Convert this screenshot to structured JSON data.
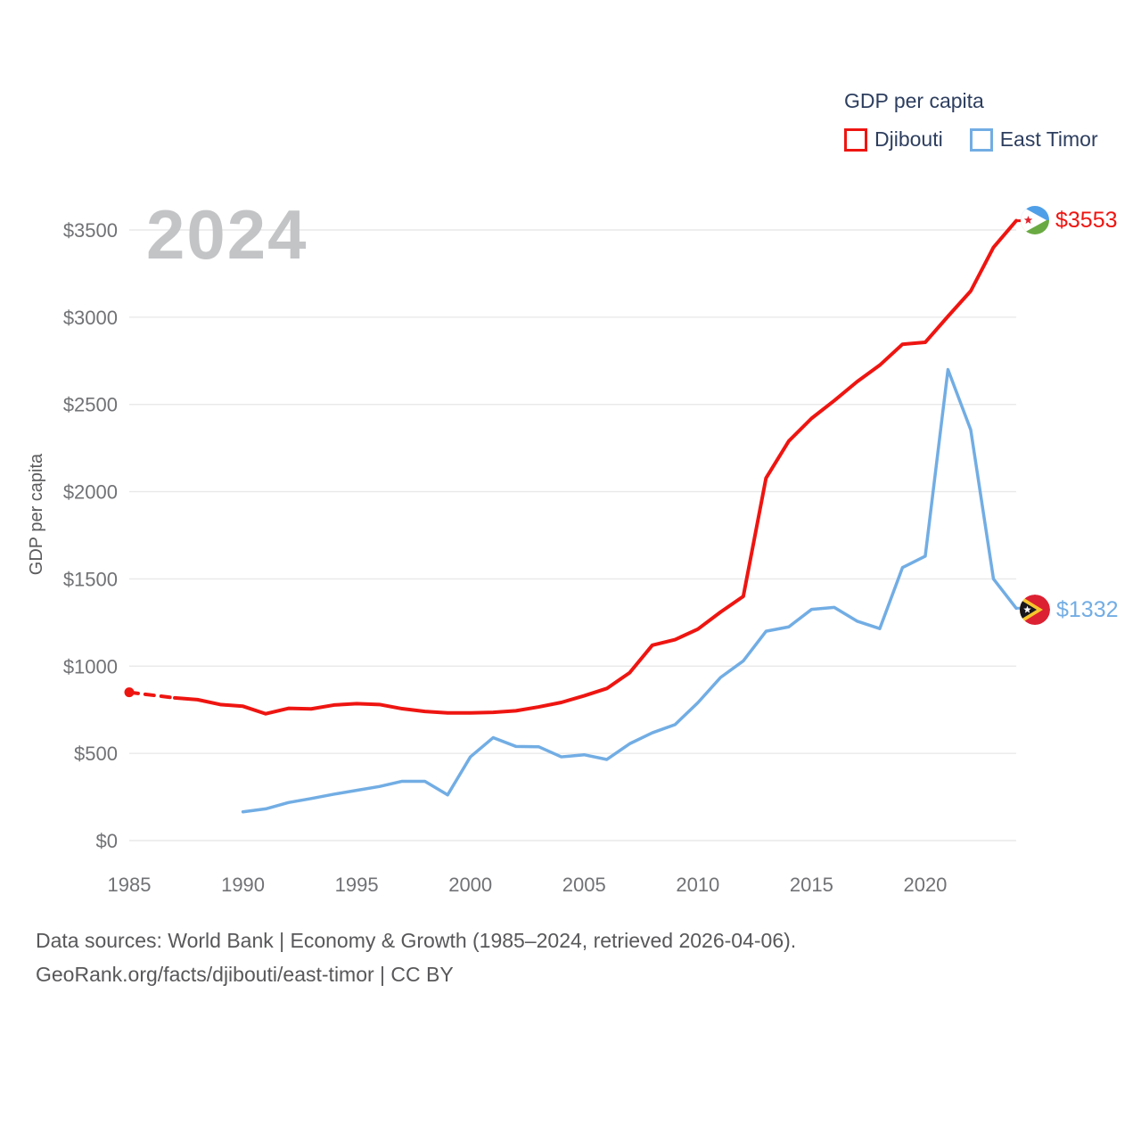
{
  "watermark": "2024",
  "legend": {
    "title": "GDP per capita",
    "series": [
      {
        "label": "Djibouti",
        "color": "#ee1511"
      },
      {
        "label": "East Timor",
        "color": "#72ade4"
      }
    ]
  },
  "end_labels": [
    {
      "value": "$3553",
      "color": "#ee1511",
      "flag": "djibouti-flag"
    },
    {
      "value": "$1332",
      "color": "#72ade4",
      "flag": "east-timor-flag"
    }
  ],
  "caption": {
    "line1": "Data sources: World Bank | Economy & Growth (1985–2024, retrieved 2026-04-06).",
    "line2": "GeoRank.org/facts/djibouti/east-timor | CC BY"
  },
  "chart_data": {
    "type": "line",
    "title": "GDP per capita",
    "xlabel": "",
    "ylabel": "GDP per capita",
    "xlim": [
      1985,
      2024
    ],
    "ylim": [
      0,
      3500
    ],
    "x_ticks": [
      1985,
      1990,
      1995,
      2000,
      2005,
      2010,
      2015,
      2020
    ],
    "y_ticks": [
      0,
      500,
      1000,
      1500,
      2000,
      2500,
      3000,
      3500
    ],
    "y_tick_prefix": "$",
    "grid": "horizontal",
    "legend_position": "top-right",
    "series": [
      {
        "name": "Djibouti",
        "color": "#ee1511",
        "end_label": "$3553",
        "start_dot": true,
        "dashed_first_segment": true,
        "x": [
          1985,
          1987,
          1988,
          1989,
          1990,
          1991,
          1992,
          1993,
          1994,
          1995,
          1996,
          1997,
          1998,
          1999,
          2000,
          2001,
          2002,
          2003,
          2004,
          2005,
          2006,
          2007,
          2008,
          2009,
          2010,
          2011,
          2012,
          2013,
          2014,
          2015,
          2016,
          2017,
          2018,
          2019,
          2020,
          2021,
          2022,
          2023,
          2024
        ],
        "y": [
          850,
          818,
          808,
          780,
          770,
          727,
          758,
          755,
          777,
          785,
          780,
          756,
          740,
          732,
          732,
          735,
          744,
          766,
          792,
          830,
          872,
          962,
          1120,
          1152,
          1212,
          1310,
          1400,
          2078,
          2290,
          2420,
          2522,
          2630,
          2725,
          2845,
          2856,
          3005,
          3150,
          3400,
          3553
        ]
      },
      {
        "name": "East Timor",
        "color": "#72ade4",
        "end_label": "$1332",
        "start_dot": false,
        "dashed_first_segment": false,
        "x": [
          1990,
          1991,
          1992,
          1993,
          1994,
          1995,
          1996,
          1997,
          1998,
          1999,
          2000,
          2001,
          2002,
          2003,
          2004,
          2005,
          2006,
          2007,
          2008,
          2009,
          2010,
          2011,
          2012,
          2013,
          2014,
          2015,
          2016,
          2017,
          2018,
          2019,
          2020,
          2021,
          2022,
          2023,
          2024
        ],
        "y": [
          165,
          182,
          218,
          241,
          266,
          288,
          310,
          340,
          340,
          262,
          480,
          590,
          540,
          538,
          480,
          492,
          465,
          555,
          618,
          665,
          790,
          935,
          1030,
          1200,
          1225,
          1325,
          1337,
          1258,
          1215,
          1565,
          1630,
          2700,
          2355,
          1500,
          1332
        ]
      }
    ]
  }
}
